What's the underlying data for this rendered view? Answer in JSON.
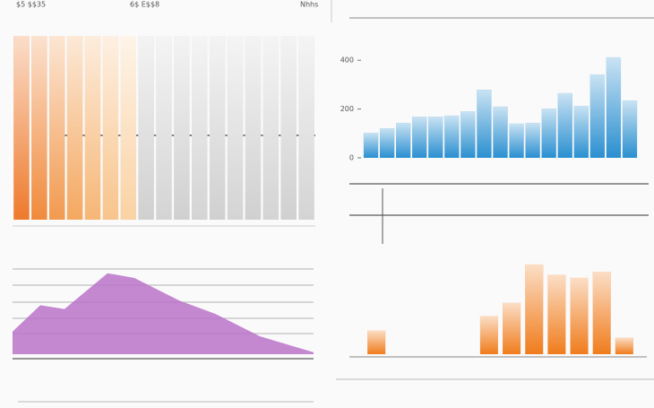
{
  "header": {
    "left": "$5 $$35",
    "center": "6$ E$$8",
    "right": "Nhhs"
  },
  "chart_data": [
    {
      "type": "columns",
      "values": [
        100,
        100,
        100,
        100,
        100,
        100,
        100,
        100,
        100,
        100,
        100,
        100,
        100,
        100,
        100,
        100,
        100
      ],
      "colors": [
        "#ee7a2c",
        "#f08a3c",
        "#f29a50",
        "#f4a860",
        "#f6b676",
        "#f8c48c",
        "#fad2a4",
        "#d0d0d0",
        "#d4d4d4",
        "#d0d0d0",
        "#d4d4d4",
        "#d0d0d0",
        "#d4d4d4",
        "#d0d0d0",
        "#d4d4d4",
        "#d0d0d0",
        "#d4d4d4"
      ],
      "ylim": [
        0,
        100
      ]
    },
    {
      "type": "bar",
      "values": [
        103,
        121,
        143,
        169,
        169,
        173,
        191,
        279,
        210,
        140,
        143,
        202,
        265,
        213,
        342,
        412,
        235
      ],
      "color": "#2a8fd0",
      "ylim": [
        0,
        500
      ],
      "yticks": [
        0,
        200,
        400
      ]
    },
    {
      "type": "area",
      "x": [
        0,
        31,
        58,
        106,
        136,
        186,
        226,
        276,
        336
      ],
      "values": [
        24,
        52,
        48,
        86,
        81,
        57,
        43,
        19,
        2
      ],
      "color": "#b873c8",
      "xlim": [
        0,
        336
      ],
      "ylim": [
        0,
        100
      ]
    },
    {
      "type": "bar",
      "x": [
        1,
        6,
        7,
        8,
        9,
        10,
        11,
        12
      ],
      "values": [
        23,
        37,
        50,
        87,
        77,
        74,
        80,
        16
      ],
      "color": "#f07c1c",
      "xlim": [
        0,
        13
      ],
      "ylim": [
        0,
        100
      ]
    }
  ]
}
